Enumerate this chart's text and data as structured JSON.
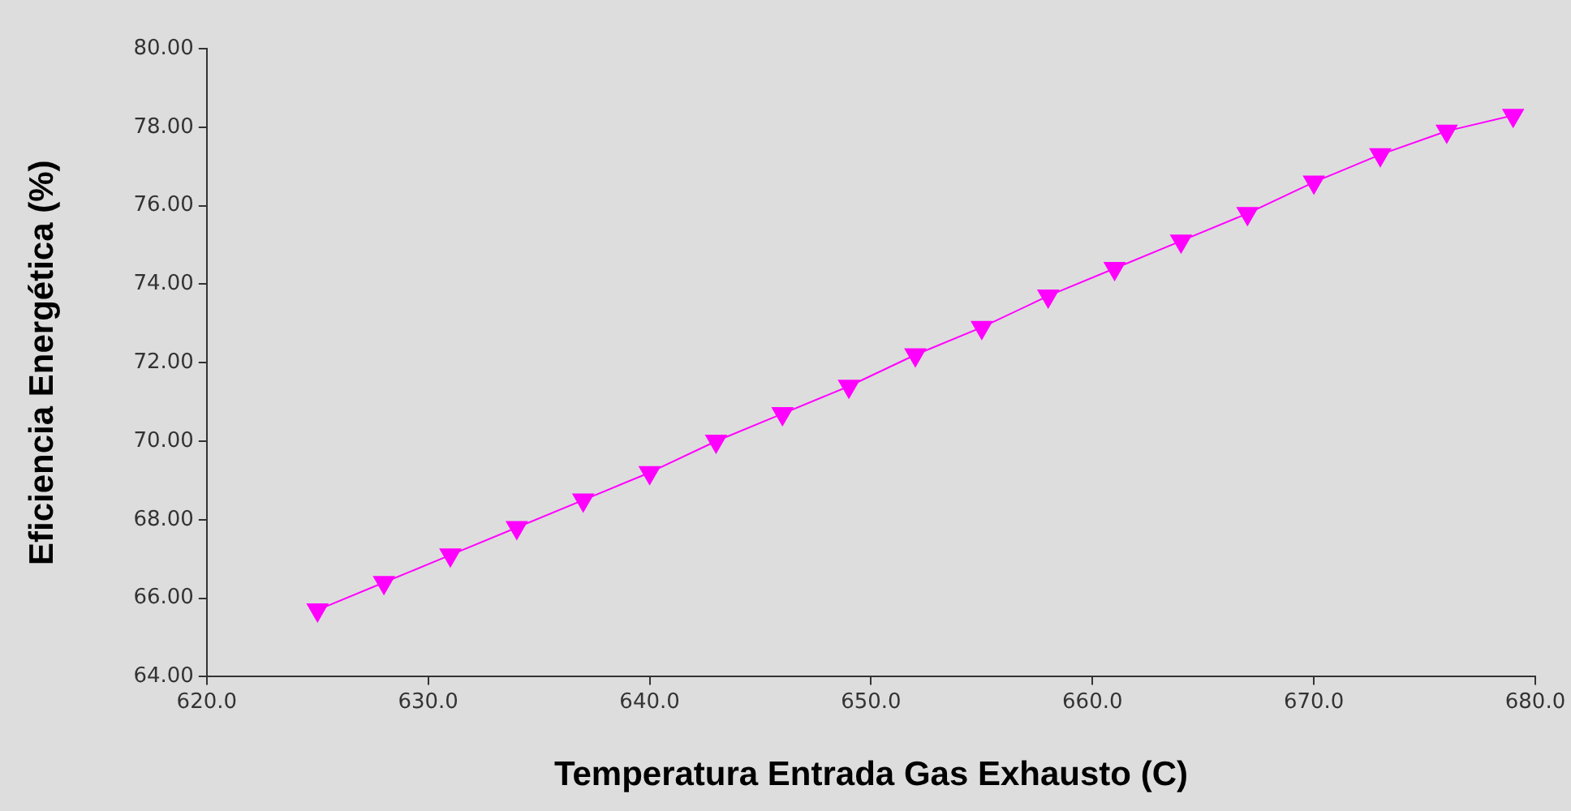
{
  "chart_data": {
    "type": "line",
    "xlabel": "Temperatura Entrada Gas Exhausto (C)",
    "ylabel": "Eficiencia Energética (%)",
    "x": [
      625,
      628,
      631,
      634,
      637,
      640,
      643,
      646,
      649,
      652,
      655,
      658,
      661,
      664,
      667,
      670,
      673,
      676,
      679
    ],
    "series": [
      {
        "color": "#ff00ff",
        "values": [
          65.7,
          66.4,
          67.1,
          67.8,
          68.5,
          69.2,
          70.0,
          70.7,
          71.4,
          72.2,
          72.9,
          73.7,
          74.4,
          75.1,
          75.8,
          76.6,
          77.3,
          77.9,
          78.3
        ]
      }
    ],
    "xlim": [
      620,
      680
    ],
    "xticks": [
      {
        "value": 620,
        "label": "620.0"
      },
      {
        "value": 630,
        "label": "630.0"
      },
      {
        "value": 640,
        "label": "640.0"
      },
      {
        "value": 650,
        "label": "650.0"
      },
      {
        "value": 660,
        "label": "660.0"
      },
      {
        "value": 670,
        "label": "670.0"
      },
      {
        "value": 680,
        "label": "680.0"
      }
    ],
    "ylim": [
      64,
      80
    ],
    "yticks": [
      {
        "value": 64,
        "label": "64.00"
      },
      {
        "value": 66,
        "label": "66.00"
      },
      {
        "value": 68,
        "label": "68.00"
      },
      {
        "value": 70,
        "label": "70.00"
      },
      {
        "value": 72,
        "label": "72.00"
      },
      {
        "value": 74,
        "label": "74.00"
      },
      {
        "value": 76,
        "label": "76.00"
      },
      {
        "value": 78,
        "label": "78.00"
      },
      {
        "value": 80,
        "label": "80.00"
      }
    ],
    "grid": false,
    "legend": false,
    "marker": "triangle",
    "line_style": "solid"
  }
}
